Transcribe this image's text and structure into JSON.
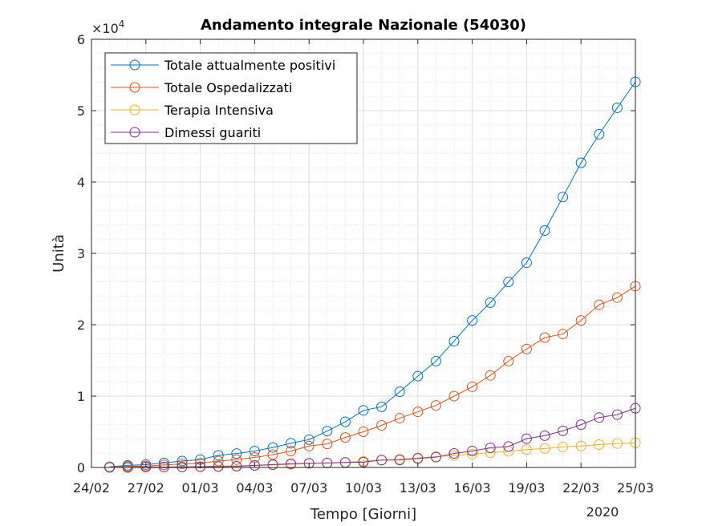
{
  "chart_data": {
    "type": "line",
    "title": "Andamento integrale Nazionale (54030)",
    "xlabel": "Tempo [Giorni]",
    "ylabel": "Unità",
    "year_label": "2020",
    "y_exponent_label": "×10",
    "y_exponent_power": "4",
    "xlim": [
      "2020-02-24",
      "2020-03-25"
    ],
    "ylim": [
      0,
      60000
    ],
    "x_tick_labels": [
      "24/02",
      "27/02",
      "01/03",
      "04/03",
      "07/03",
      "10/03",
      "13/03",
      "16/03",
      "19/03",
      "22/03",
      "25/03"
    ],
    "y_tick_labels": [
      "0",
      "1",
      "2",
      "3",
      "4",
      "5",
      "6"
    ],
    "grid": true,
    "minor_grid": true,
    "legend_position": "top-left",
    "x": [
      "2020-02-25",
      "2020-02-26",
      "2020-02-27",
      "2020-02-28",
      "2020-02-29",
      "2020-03-01",
      "2020-03-02",
      "2020-03-03",
      "2020-03-04",
      "2020-03-05",
      "2020-03-06",
      "2020-03-07",
      "2020-03-08",
      "2020-03-09",
      "2020-03-10",
      "2020-03-11",
      "2020-03-12",
      "2020-03-13",
      "2020-03-14",
      "2020-03-15",
      "2020-03-16",
      "2020-03-17",
      "2020-03-18",
      "2020-03-19",
      "2020-03-20",
      "2020-03-21",
      "2020-03-22",
      "2020-03-23",
      "2020-03-24",
      "2020-03-25"
    ],
    "series": [
      {
        "name": "Totale attualmente positivi",
        "color": "#0072BD",
        "values": [
          100,
          300,
          400,
          650,
          900,
          1100,
          1700,
          1950,
          2300,
          2800,
          3400,
          3900,
          5100,
          6400,
          8000,
          8500,
          10600,
          12800,
          14900,
          17700,
          20600,
          23100,
          26000,
          28700,
          33200,
          37900,
          42700,
          46700,
          50400,
          54030
        ]
      },
      {
        "name": "Totale Ospedalizzati",
        "color": "#D95319",
        "values": [
          50,
          150,
          200,
          350,
          500,
          600,
          900,
          1100,
          1400,
          1800,
          2300,
          3000,
          3300,
          4200,
          5000,
          5900,
          6900,
          7800,
          8700,
          10000,
          11300,
          12900,
          14900,
          16600,
          18200,
          18700,
          20600,
          22800,
          23800,
          25400
        ]
      },
      {
        "name": "Terapia Intensiva",
        "color": "#EDB120",
        "values": [
          30,
          40,
          60,
          70,
          100,
          140,
          180,
          230,
          290,
          350,
          440,
          560,
          650,
          730,
          880,
          1030,
          1150,
          1330,
          1520,
          1670,
          1860,
          2080,
          2270,
          2500,
          2650,
          2860,
          3000,
          3200,
          3350,
          3450
        ]
      },
      {
        "name": "Dimessi guariti",
        "color": "#7E2F8E",
        "values": [
          0,
          0,
          50,
          60,
          70,
          90,
          120,
          160,
          280,
          410,
          520,
          590,
          620,
          700,
          740,
          1040,
          1050,
          1260,
          1440,
          1970,
          2300,
          2750,
          2940,
          4030,
          4450,
          5130,
          6000,
          7000,
          7400,
          8300
        ]
      }
    ]
  }
}
